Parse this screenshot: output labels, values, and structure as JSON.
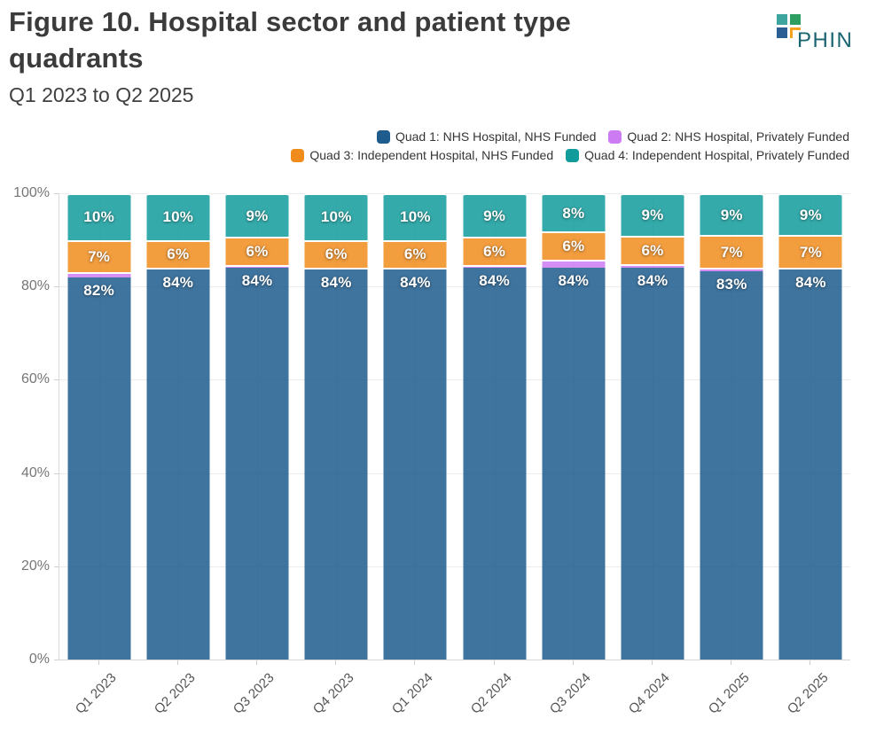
{
  "header": {
    "title": "Figure 10. Hospital sector and patient type quadrants",
    "subtitle": "Q1 2023 to Q2 2025",
    "logo_text": "PHIN"
  },
  "chart_data": {
    "type": "bar",
    "stacked": true,
    "percent_stack": true,
    "title": "Figure 10. Hospital sector and patient type quadrants",
    "subtitle": "Q1 2023 to Q2 2025",
    "categories": [
      "Q1 2023",
      "Q2 2023",
      "Q3 2023",
      "Q4 2023",
      "Q1 2024",
      "Q2 2024",
      "Q3 2024",
      "Q4 2024",
      "Q1 2025",
      "Q2 2025"
    ],
    "series": [
      {
        "name": "Quad 1: NHS Hospital, NHS Funded",
        "color": "#1d5c8d",
        "values": [
          82,
          83.6,
          84,
          83.6,
          83.6,
          84,
          84,
          84,
          83.2,
          83.8
        ],
        "data_labels": [
          "82%",
          "84%",
          "84%",
          "84%",
          "84%",
          "84%",
          "84%",
          "84%",
          "83%",
          "84%"
        ]
      },
      {
        "name": "Quad 2: NHS Hospital, Privately Funded",
        "color": "#cc7bf2",
        "values": [
          1,
          0.4,
          0.6,
          0.4,
          0.4,
          0.6,
          1.8,
          0.8,
          0.8,
          0.2
        ],
        "data_labels": [
          "",
          "",
          "",
          "",
          "",
          "",
          "",
          "",
          "",
          ""
        ]
      },
      {
        "name": "Quad 3: Independent Hospital, NHS Funded",
        "color": "#f08c1c",
        "values": [
          7,
          6,
          6,
          6,
          6,
          6,
          6,
          6,
          7,
          7
        ],
        "data_labels": [
          "7%",
          "6%",
          "6%",
          "6%",
          "6%",
          "6%",
          "6%",
          "6%",
          "7%",
          "7%"
        ]
      },
      {
        "name": "Quad 4: Independent Hospital, Privately Funded",
        "color": "#129b9b",
        "values": [
          10,
          10,
          9.4,
          10,
          10,
          9.4,
          8.2,
          9.2,
          9,
          9
        ],
        "data_labels": [
          "10%",
          "10%",
          "9%",
          "10%",
          "10%",
          "9%",
          "8%",
          "9%",
          "9%",
          "9%"
        ]
      }
    ],
    "bar_fill_opacity": 0.85,
    "y_axis": {
      "min": 0,
      "max": 100,
      "grid": true,
      "ticks": [
        {
          "label": "0%",
          "value": 0
        },
        {
          "label": "20%",
          "value": 20
        },
        {
          "label": "40%",
          "value": 40
        },
        {
          "label": "60%",
          "value": 60
        },
        {
          "label": "80%",
          "value": 80
        },
        {
          "label": "100%",
          "value": 100
        }
      ]
    },
    "legend_position": "top-right",
    "legend_rows": 2
  }
}
